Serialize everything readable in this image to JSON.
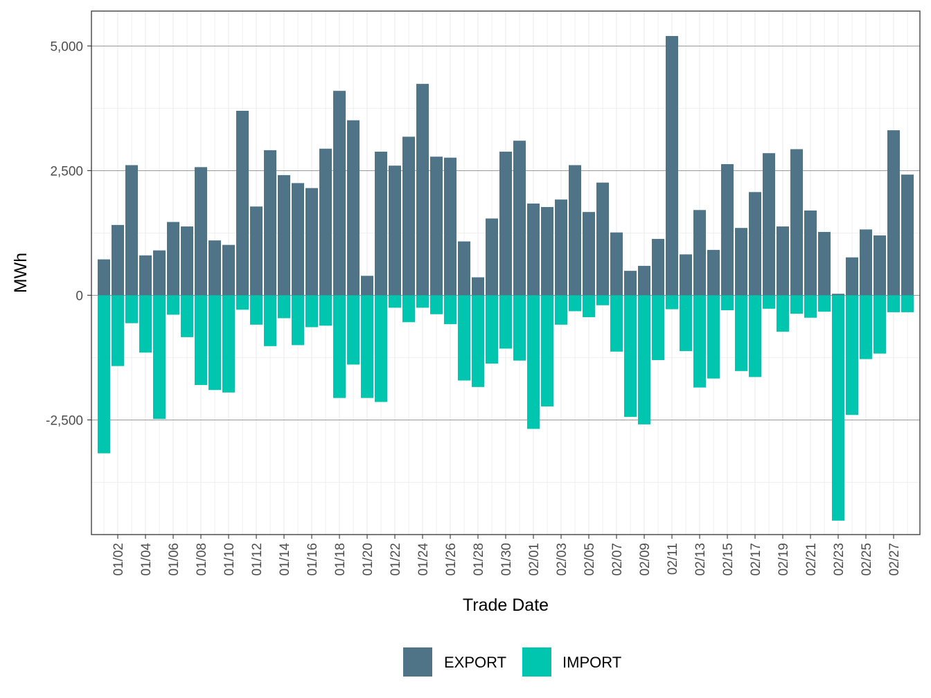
{
  "chart_data": {
    "type": "bar",
    "stacked": "diverging",
    "xlabel": "Trade Date",
    "ylabel": "MWh",
    "ylim": [
      -4800,
      5700
    ],
    "y_ticks": [
      -2500,
      0,
      2500,
      5000
    ],
    "y_tick_labels": [
      "-2,500",
      "0",
      "2,500",
      "5,000"
    ],
    "y_minor_ticks": [
      -3750,
      -1250,
      1250,
      3750
    ],
    "grid": true,
    "legend_position": "bottom",
    "colors": {
      "EXPORT": "#4f7387",
      "IMPORT": "#00c6b0"
    },
    "categories": [
      "01/01",
      "01/02",
      "01/03",
      "01/04",
      "01/05",
      "01/06",
      "01/07",
      "01/08",
      "01/09",
      "01/10",
      "01/11",
      "01/12",
      "01/13",
      "01/14",
      "01/15",
      "01/16",
      "01/17",
      "01/18",
      "01/19",
      "01/20",
      "01/21",
      "01/22",
      "01/23",
      "01/24",
      "01/25",
      "01/26",
      "01/27",
      "01/28",
      "01/29",
      "01/30",
      "01/31",
      "02/01",
      "02/02",
      "02/03",
      "02/04",
      "02/05",
      "02/06",
      "02/07",
      "02/08",
      "02/09",
      "02/10",
      "02/11",
      "02/12",
      "02/13",
      "02/14",
      "02/15",
      "02/16",
      "02/17",
      "02/18",
      "02/19",
      "02/20",
      "02/21",
      "02/22",
      "02/23",
      "02/24",
      "02/25",
      "02/26",
      "02/27",
      "02/28"
    ],
    "x_tick_labels": [
      "01/02",
      "01/04",
      "01/06",
      "01/08",
      "01/10",
      "01/12",
      "01/14",
      "01/16",
      "01/18",
      "01/20",
      "01/22",
      "01/24",
      "01/26",
      "01/28",
      "01/30",
      "02/01",
      "02/03",
      "02/05",
      "02/07",
      "02/09",
      "02/11",
      "02/13",
      "02/15",
      "02/17",
      "02/19",
      "02/21",
      "02/23",
      "02/25",
      "02/27"
    ],
    "series": [
      {
        "name": "EXPORT",
        "values": [
          720,
          1410,
          2610,
          800,
          900,
          1470,
          1380,
          2570,
          1100,
          1010,
          3700,
          1780,
          2910,
          2410,
          2250,
          2150,
          2940,
          4100,
          3510,
          390,
          2880,
          2600,
          3180,
          4240,
          2780,
          2760,
          1080,
          360,
          1540,
          2880,
          3100,
          1840,
          1770,
          1920,
          2610,
          1670,
          2260,
          1260,
          490,
          590,
          1130,
          5200,
          820,
          1710,
          910,
          2630,
          1350,
          2070,
          2850,
          1380,
          2930,
          1700,
          1270,
          30,
          760,
          1320,
          1200,
          3310,
          2420
        ]
      },
      {
        "name": "IMPORT",
        "values": [
          -3170,
          -1420,
          -560,
          -1150,
          -2480,
          -390,
          -840,
          -1800,
          -1900,
          -1950,
          -290,
          -590,
          -1020,
          -460,
          -1000,
          -640,
          -610,
          -2060,
          -1390,
          -2060,
          -2140,
          -250,
          -540,
          -250,
          -380,
          -580,
          -1710,
          -1840,
          -1370,
          -1070,
          -1310,
          -2680,
          -2230,
          -590,
          -320,
          -440,
          -200,
          -1130,
          -2440,
          -2590,
          -1300,
          -280,
          -1120,
          -1850,
          -1670,
          -300,
          -1520,
          -1640,
          -270,
          -730,
          -370,
          -450,
          -330,
          -4520,
          -2400,
          -1280,
          -1170,
          -340,
          -340
        ]
      }
    ]
  }
}
